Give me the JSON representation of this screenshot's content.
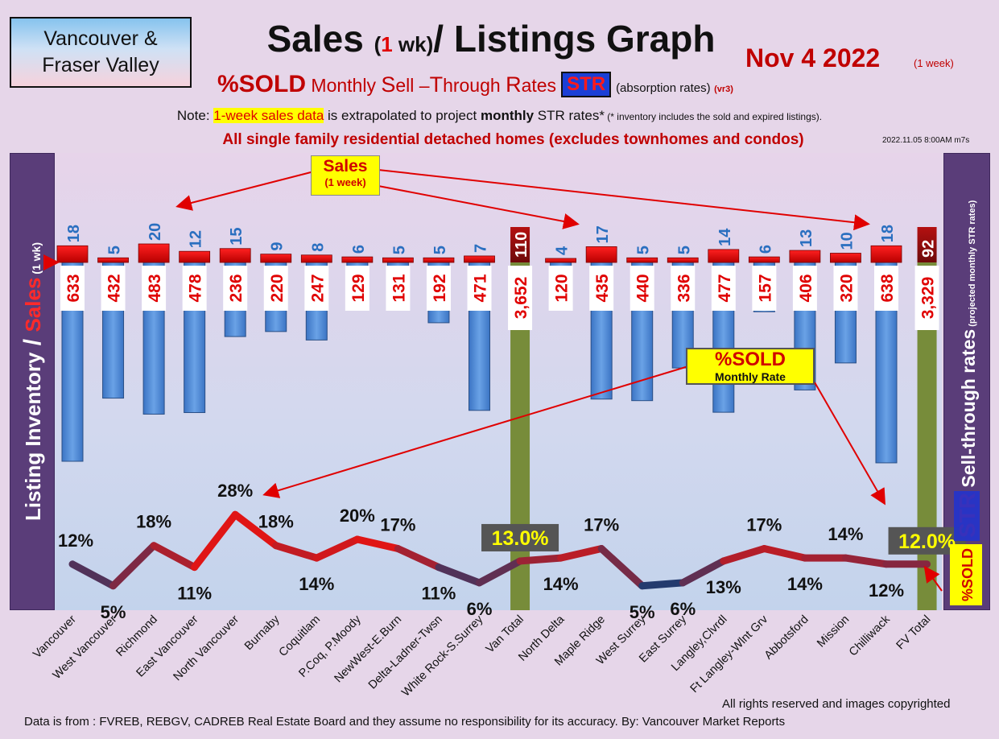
{
  "region": {
    "line1": "Vancouver &",
    "line2": "Fraser Valley"
  },
  "title": {
    "part1": "Sales ",
    "paren_open": "(",
    "num": "1",
    "wk": " wk)",
    "part2": "/ Listings Graph"
  },
  "date": {
    "main": "Nov 4  2022",
    "sub": "(1 week)"
  },
  "subtitle": {
    "sold": "%SOLD",
    "m1": " Monthly ",
    "s": "S",
    "ell": "ell –",
    "t": "T",
    "hrough": "hrough ",
    "r": "R",
    "ates": "ates",
    "str": "STR",
    "abs": "(absorption rates)",
    "ver": "(vr3)"
  },
  "note": {
    "prefix": "Note: ",
    "highlight": "1-week sales data",
    "middle": " is extrapolated to project ",
    "bold": "monthly",
    "suffix": " STR rates*",
    "small": " (* inventory includes the sold and expired listings)."
  },
  "subhead": {
    "main": "All single family residential detached homes",
    "paren": " (excludes townhomes and condos)"
  },
  "timestamp": "2022.11.05 8:00AM m7s",
  "left_axis": {
    "inventory": "Listing Inventory",
    "slash": " / ",
    "sales": "Sales",
    "wk": " (1 wk)"
  },
  "right_axis": {
    "str": "STR",
    "title": " Sell-through rates",
    "paren": " (projected monthly STR rates)",
    "sold": "%SOLD"
  },
  "sales_callout": {
    "title": "Sales",
    "sub": "(1 week)"
  },
  "sold_callout": {
    "title": "%SOLD",
    "sub": "Monthly Rate"
  },
  "footer": {
    "rights": "All rights reserved and  images copyrighted",
    "source": "Data is from : FVREB, REBGV, CADREB Real Estate Board and they assume no responsibility for its accuracy. By: Vancouver Market Reports"
  },
  "colors": {
    "sales_bar": "#e00000",
    "listing_bar": "#4a86d4",
    "total_bar": "#778c3a",
    "line_high": "#e01515",
    "line_low": "#1c3d72",
    "str_label_bg": "#555555",
    "str_label_text": "#ffff00"
  },
  "chart_data": {
    "type": "bar",
    "categories": [
      "Vancouver",
      "West Vancouver",
      "Richmond",
      "East Vancouver",
      "North Vancouver",
      "Burnaby",
      "Coquitlam",
      "P.Coq, P.Moody",
      "NewWest-E.Burn",
      "Delta-Ladner-Twsn",
      "White Rock-S.Surrey",
      "Van Total",
      "North Delta",
      "Maple Ridge",
      "West Surrey",
      "East Surrey",
      "Langley,Clvrdl",
      "Ft Langley-Wlnt Grv",
      "Abbotsford",
      "Mission",
      "Chilliwack",
      "FV Total"
    ],
    "is_total": [
      false,
      false,
      false,
      false,
      false,
      false,
      false,
      false,
      false,
      false,
      false,
      true,
      false,
      false,
      false,
      false,
      false,
      false,
      false,
      false,
      false,
      true
    ],
    "series": [
      {
        "name": "Sales",
        "values": [
          18,
          5,
          20,
          12,
          15,
          9,
          8,
          6,
          5,
          5,
          7,
          110,
          4,
          17,
          5,
          5,
          14,
          6,
          13,
          10,
          18,
          92
        ]
      },
      {
        "name": "Listing Inventory",
        "values": [
          633,
          432,
          483,
          478,
          236,
          220,
          247,
          129,
          131,
          192,
          471,
          3652,
          120,
          435,
          440,
          336,
          477,
          157,
          406,
          320,
          638,
          3329
        ]
      },
      {
        "name": "%SOLD",
        "values": [
          12,
          5,
          18,
          11,
          28,
          18,
          14,
          20,
          17,
          11,
          6,
          13.0,
          14,
          17,
          5,
          6,
          13,
          17,
          14,
          14,
          12,
          12.0
        ]
      }
    ],
    "sales_labels": [
      "18",
      "5",
      "20",
      "12",
      "15",
      "9",
      "8",
      "6",
      "5",
      "5",
      "7",
      "110",
      "4",
      "17",
      "5",
      "5",
      "14",
      "6",
      "13",
      "10",
      "18",
      "92"
    ],
    "listing_labels": [
      "633",
      "432",
      "483",
      "478",
      "236",
      "220",
      "247",
      "129",
      "131",
      "192",
      "471",
      "3,652",
      "120",
      "435",
      "440",
      "336",
      "477",
      "157",
      "406",
      "320",
      "638",
      "3,329"
    ],
    "sold_labels": [
      "12%",
      "5%",
      "18%",
      "11%",
      "28%",
      "18%",
      "14%",
      "20%",
      "17%",
      "11%",
      "6%",
      "13.0%",
      "14%",
      "17%",
      "5%",
      "6%",
      "13%",
      "17%",
      "14%",
      "14%",
      "12%",
      "12.0%"
    ]
  }
}
